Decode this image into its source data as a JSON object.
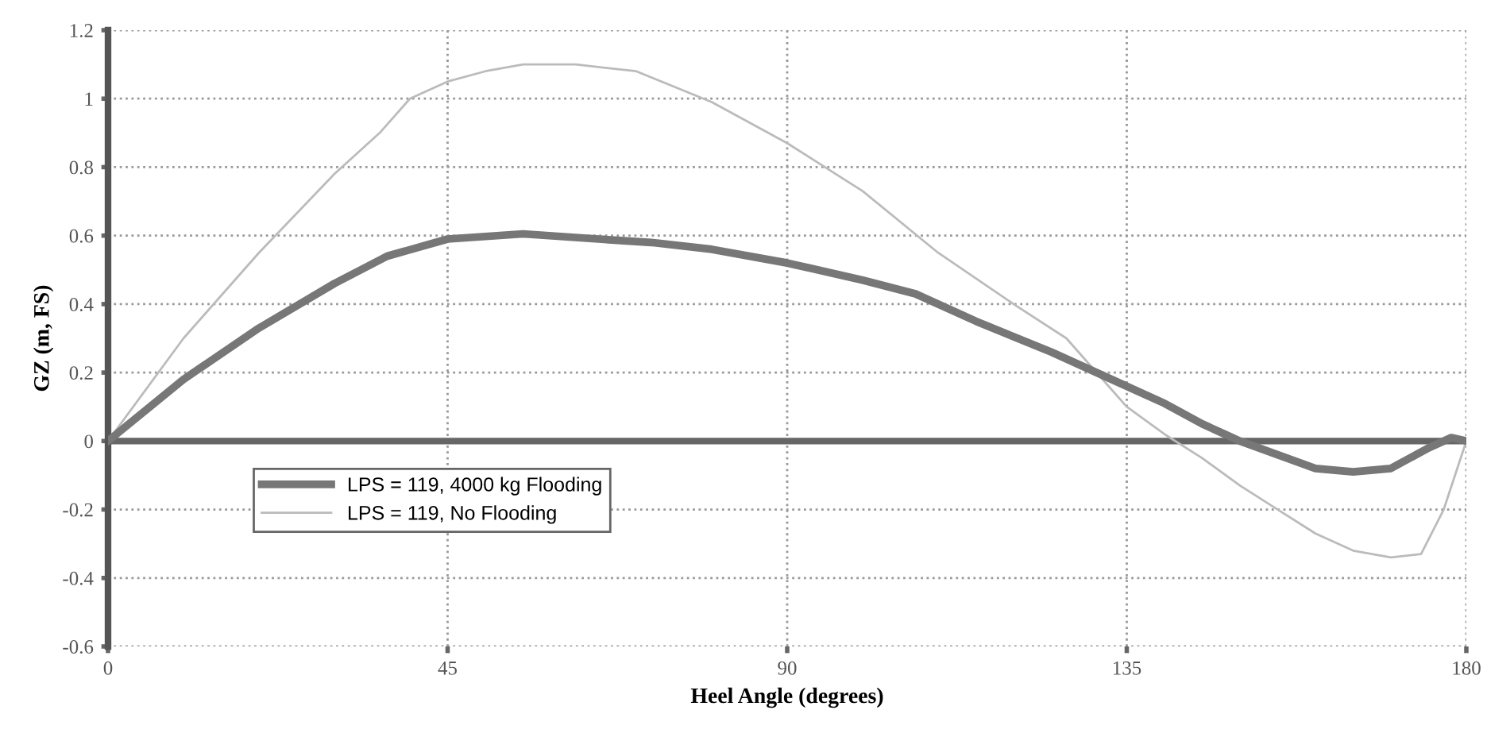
{
  "chart_data": {
    "type": "line",
    "xlabel": "Heel Angle (degrees)",
    "ylabel": "GZ (m, FS)",
    "xlim": [
      0,
      180
    ],
    "xticks": [
      0,
      45,
      90,
      135,
      180
    ],
    "ylim": [
      -0.6,
      1.2
    ],
    "yticks": [
      -0.6,
      -0.4,
      -0.2,
      0,
      0.2,
      0.4,
      0.6,
      0.8,
      1,
      1.2
    ],
    "grid": true,
    "legend": "bottom left",
    "line_style": "solid",
    "ref_lines": [
      {
        "axis": "y",
        "value": 0,
        "label": null,
        "color": "#666666"
      }
    ],
    "series": [
      {
        "name": "LPS = 119, 4000 kg Flooding",
        "color": "#777777",
        "x": [
          0,
          10,
          20,
          30,
          37,
          45,
          55,
          65,
          72,
          80,
          90,
          100,
          107,
          115,
          125,
          133,
          140,
          145,
          148,
          150,
          155,
          160,
          165,
          170,
          175,
          178,
          180
        ],
        "values": [
          0,
          0.18,
          0.33,
          0.46,
          0.54,
          0.59,
          0.605,
          0.59,
          0.58,
          0.56,
          0.52,
          0.47,
          0.43,
          0.35,
          0.26,
          0.18,
          0.11,
          0.05,
          0.02,
          0.0,
          -0.04,
          -0.08,
          -0.09,
          -0.08,
          -0.02,
          0.01,
          0
        ]
      },
      {
        "name": "LPS = 119, No Flooding",
        "color": "#bbbbbb",
        "x": [
          0,
          10,
          20,
          30,
          36,
          40,
          45,
          50,
          55,
          62,
          70,
          80,
          90,
          100,
          110,
          120,
          127,
          135,
          140,
          145,
          150,
          155,
          160,
          165,
          170,
          174,
          177,
          180
        ],
        "values": [
          0,
          0.3,
          0.55,
          0.78,
          0.9,
          1.0,
          1.05,
          1.08,
          1.1,
          1.1,
          1.08,
          0.99,
          0.87,
          0.73,
          0.55,
          0.4,
          0.3,
          0.1,
          0.02,
          -0.05,
          -0.13,
          -0.2,
          -0.27,
          -0.32,
          -0.34,
          -0.33,
          -0.2,
          0
        ]
      }
    ]
  }
}
